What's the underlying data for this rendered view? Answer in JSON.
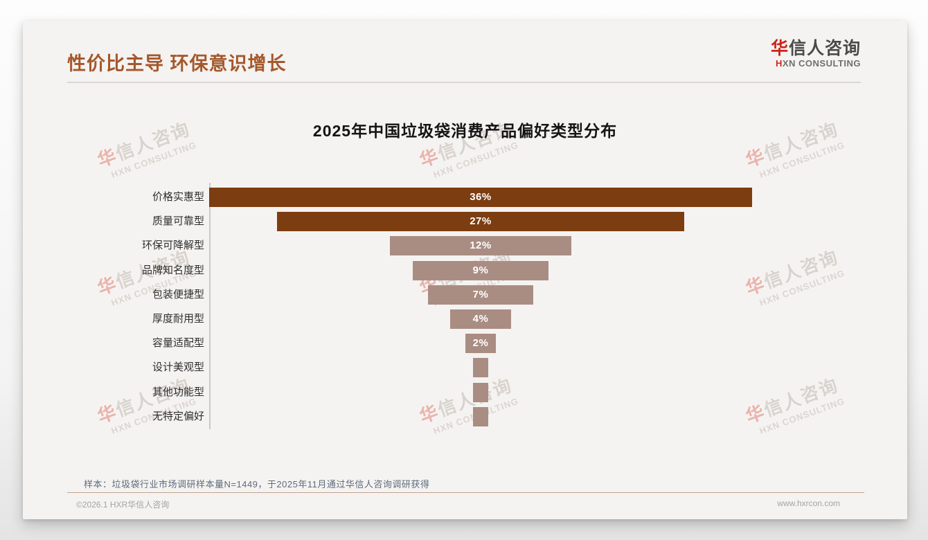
{
  "page": {
    "header_title": "性价比主导 环保意识增长",
    "logo": {
      "cn_first": "华",
      "cn_rest": "信人咨询",
      "en_first": "H",
      "en_rest": "XN CONSULTING"
    },
    "watermark": {
      "cn": "华信人咨询",
      "en": "HXN CONSULTING"
    },
    "source_note": "样本：垃圾袋行业市场调研样本量N=1449，于2025年11月通过华信人咨询调研获得",
    "footer_left": "©2026.1 HXR华信人咨询",
    "footer_right": "www.hxrcon.com"
  },
  "chart_data": {
    "type": "bar",
    "variant": "horizontal-centered-funnel",
    "title": "2025年中国垃圾袋消费产品偏好类型分布",
    "categories": [
      "价格实惠型",
      "质量可靠型",
      "环保可降解型",
      "品牌知名度型",
      "包装便捷型",
      "厚度耐用型",
      "容量适配型",
      "设计美观型",
      "其他功能型",
      "无特定偏好"
    ],
    "values": [
      36,
      27,
      12,
      9,
      7,
      4,
      2,
      1,
      1,
      1
    ],
    "unit": "%",
    "value_label_min": 2,
    "highlight_count": 2,
    "colors": {
      "primary": "#7c3d11",
      "secondary": "#a98d83",
      "value_label": "#ffffff"
    },
    "xlim": [
      0,
      36
    ],
    "grid": false,
    "legend": false
  }
}
